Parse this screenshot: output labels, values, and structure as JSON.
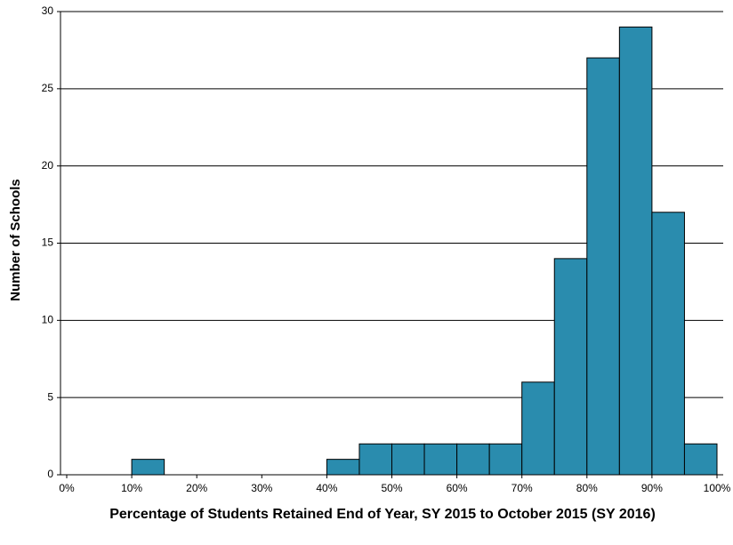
{
  "chart_data": {
    "type": "histogram",
    "x_label": "Percentage of Students Retained End of Year, SY 2015 to October 2015 (SY 2016)",
    "y_label": "Number of Schools",
    "bins": [
      0,
      5,
      10,
      15,
      20,
      25,
      30,
      35,
      40,
      45,
      50,
      55,
      60,
      65,
      70,
      75,
      80,
      85,
      90,
      95,
      100
    ],
    "values": [
      0,
      0,
      1,
      0,
      0,
      0,
      0,
      0,
      1,
      2,
      2,
      2,
      2,
      2,
      6,
      14,
      27,
      29,
      17,
      2
    ],
    "color": "#2a8cae",
    "xlim": [
      0,
      100
    ],
    "xticks": [
      {
        "value": 0,
        "label": "0%"
      },
      {
        "value": 10,
        "label": "10%"
      },
      {
        "value": 20,
        "label": "20%"
      },
      {
        "value": 30,
        "label": "30%"
      },
      {
        "value": 40,
        "label": "40%"
      },
      {
        "value": 50,
        "label": "50%"
      },
      {
        "value": 60,
        "label": "60%"
      },
      {
        "value": 70,
        "label": "70%"
      },
      {
        "value": 80,
        "label": "80%"
      },
      {
        "value": 90,
        "label": "90%"
      },
      {
        "value": 100,
        "label": "100%"
      }
    ],
    "ylim": [
      0,
      30
    ],
    "yticks": [
      0,
      5,
      10,
      15,
      20,
      25,
      30
    ],
    "grid": true
  }
}
